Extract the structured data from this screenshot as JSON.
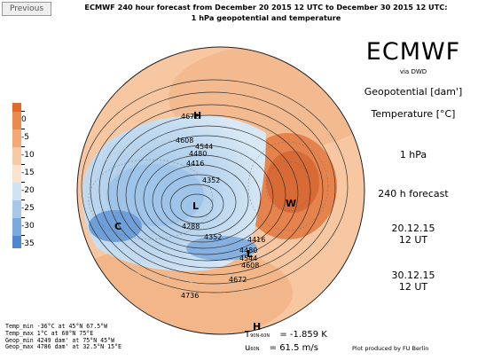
{
  "nav": {
    "previous_label": "Previous"
  },
  "title": {
    "line1": "ECMWF 240 hour forecast from December 20 2015 12 UTC to December 30 2015 12 UTC:",
    "line2": "1 hPa geopotential and temperature"
  },
  "side": {
    "model": "ECMWF",
    "via": "via DWD",
    "field1": "Geopotential [dam']",
    "field2": "Temperature [°C]",
    "level": "1 hPa",
    "forecast": "240 h forecast",
    "init_date": "20.12.15",
    "init_time": "12 UT",
    "valid_date": "30.12.15",
    "valid_time": "12 UT"
  },
  "color_scale": {
    "ticks": [
      "0",
      "-5",
      "-10",
      "-15",
      "-20",
      "-25",
      "-30",
      "-35"
    ],
    "colors": [
      "#e0692c",
      "#ec8a4e",
      "#f3a977",
      "#f9c9a4",
      "#fbe3cf",
      "#cfe3f3",
      "#a7c8ea",
      "#7aa9dd",
      "#4f86ce"
    ]
  },
  "map": {
    "contour_labels": [
      "4672",
      "4608",
      "4544",
      "4480",
      "4416",
      "4352",
      "4288",
      "4352",
      "4416",
      "4480",
      "4544",
      "4608",
      "4672",
      "4736"
    ],
    "markers": [
      "H",
      "L",
      "W",
      "C",
      "L",
      "H"
    ]
  },
  "stats": {
    "temp_min": "Temp_min  -36°C at 45°N 67.5°W",
    "temp_max": "Temp_max  1°C at 60°N 75°E",
    "geop_min": "Geop_min 4249 dam' at 75°N 45°W",
    "geop_max": "Geop_max 4786 dam' at 32.5°N 15°E"
  },
  "bottom": {
    "t_line": "T",
    "t_sub": "90N-60N",
    "t_value": "= -1.859  K",
    "u_line": "u",
    "u_sub": "60N",
    "u_value": "= 61.5 m/s",
    "credit": "Plot produced by FU Berlin"
  }
}
